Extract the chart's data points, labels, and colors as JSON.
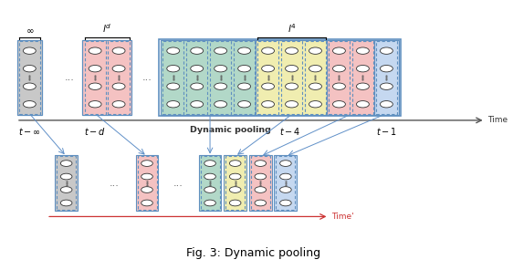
{
  "title": "Fig. 3: Dynamic pooling",
  "colors": {
    "gray": "#c8c8c8",
    "pink": "#f4c2c2",
    "green": "#b2d8c8",
    "yellow": "#f0edb0",
    "blue_light": "#c5d8f0",
    "border_blue": "#6090c0",
    "circle_fill": "#ffffff",
    "circle_edge": "#333333",
    "arrow_color": "#6090c8",
    "time_arrow": "#555555",
    "timeprime_arrow": "#cc3333"
  },
  "fig_width": 5.62,
  "fig_height": 2.96,
  "dpi": 100
}
